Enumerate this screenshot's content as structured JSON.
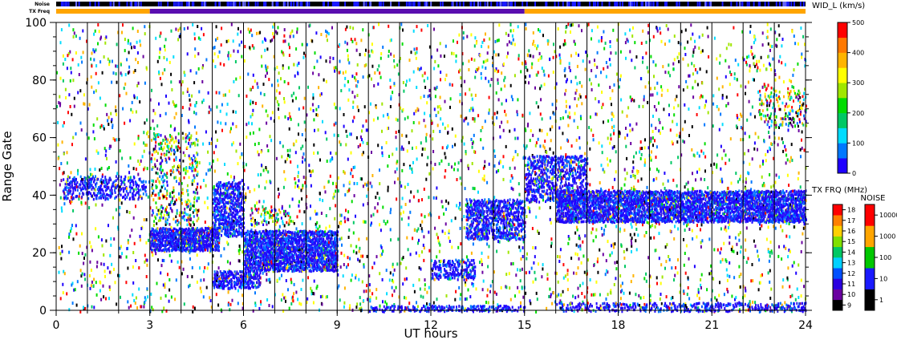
{
  "chart_data": {
    "type": "heatmap",
    "xlabel": "UT hours",
    "ylabel": "Range Gate",
    "xlim": [
      0,
      24
    ],
    "ylim": [
      0,
      100
    ],
    "x_ticks": [
      0,
      3,
      6,
      9,
      12,
      15,
      18,
      21,
      24
    ],
    "y_ticks": [
      0,
      20,
      40,
      60,
      80,
      100
    ],
    "scan_boundaries_ut": [
      1,
      2,
      3,
      4,
      5,
      6,
      7,
      8,
      9,
      10,
      11,
      12,
      13,
      14,
      15,
      16,
      17,
      18,
      19,
      20,
      21,
      22,
      23,
      24
    ],
    "top_bars": {
      "noise_label": "Noise",
      "txfreq_label": "TX Freq",
      "txfreq_segments": [
        {
          "start": 0,
          "end": 3,
          "color": "#ffa500"
        },
        {
          "start": 3,
          "end": 15,
          "color": "#5a0eb0"
        },
        {
          "start": 15,
          "end": 24,
          "color": "#ffa500"
        }
      ]
    },
    "colorbars": [
      {
        "title": "WID_L (km/s)",
        "ticks": [
          "500",
          "400",
          "300",
          "200",
          "100",
          "0"
        ],
        "range": [
          0,
          500
        ],
        "colors": [
          "#1e00ff",
          "#0078ff",
          "#00dcff",
          "#00c864",
          "#00dc00",
          "#a0e600",
          "#ffff00",
          "#ffb400",
          "#ff7800",
          "#ff0000"
        ]
      },
      {
        "title": "TX FRQ (MHz)",
        "ticks": [
          "18",
          "17",
          "16",
          "15",
          "14",
          "13",
          "12",
          "11",
          "10",
          "9"
        ],
        "colors": [
          "#000000",
          "#6a00a0",
          "#2a00e0",
          "#0050ff",
          "#00d0ff",
          "#00c864",
          "#80e000",
          "#ffd000",
          "#ff8000",
          "#ff0000"
        ]
      },
      {
        "title": "NOISE",
        "ticks": [
          "10000",
          "1000",
          "100",
          "10",
          "1"
        ],
        "colors": [
          "#000000",
          "#1a1aff",
          "#00c800",
          "#ffa500",
          "#ff0000"
        ]
      }
    ],
    "bands": [
      {
        "x0": 0.2,
        "x1": 2.9,
        "y0": 39,
        "y1": 47,
        "density": 0.35,
        "kind": "blue"
      },
      {
        "x0": 3.0,
        "x1": 5.2,
        "y0": 21,
        "y1": 29,
        "density": 0.85,
        "kind": "blue"
      },
      {
        "x0": 5.0,
        "x1": 6.0,
        "y0": 26,
        "y1": 45,
        "density": 0.55,
        "kind": "blue"
      },
      {
        "x0": 3.0,
        "x1": 4.5,
        "y0": 30,
        "y1": 62,
        "density": 0.15,
        "kind": "mixed"
      },
      {
        "x0": 5.0,
        "x1": 6.5,
        "y0": 8,
        "y1": 14,
        "density": 0.6,
        "kind": "blue"
      },
      {
        "x0": 6.0,
        "x1": 9.0,
        "y0": 14,
        "y1": 28,
        "density": 0.75,
        "kind": "blue"
      },
      {
        "x0": 6.2,
        "x1": 7.6,
        "y0": 30,
        "y1": 36,
        "density": 0.2,
        "kind": "mixed"
      },
      {
        "x0": 10.0,
        "x1": 15.0,
        "y0": 0,
        "y1": 2,
        "density": 0.5,
        "kind": "blue"
      },
      {
        "x0": 12.0,
        "x1": 13.4,
        "y0": 11,
        "y1": 18,
        "density": 0.45,
        "kind": "blue"
      },
      {
        "x0": 13.1,
        "x1": 15.0,
        "y0": 25,
        "y1": 39,
        "density": 0.55,
        "kind": "blue"
      },
      {
        "x0": 15.0,
        "x1": 17.0,
        "y0": 38,
        "y1": 54,
        "density": 0.4,
        "kind": "blue"
      },
      {
        "x0": 16.0,
        "x1": 24.0,
        "y0": 31,
        "y1": 42,
        "density": 0.75,
        "kind": "blue"
      },
      {
        "x0": 16.0,
        "x1": 24.0,
        "y0": 0,
        "y1": 3,
        "density": 0.35,
        "kind": "blue"
      },
      {
        "x0": 22.5,
        "x1": 24.0,
        "y0": 64,
        "y1": 78,
        "density": 0.15,
        "kind": "mixed"
      }
    ],
    "scatter_density": 0.06
  }
}
